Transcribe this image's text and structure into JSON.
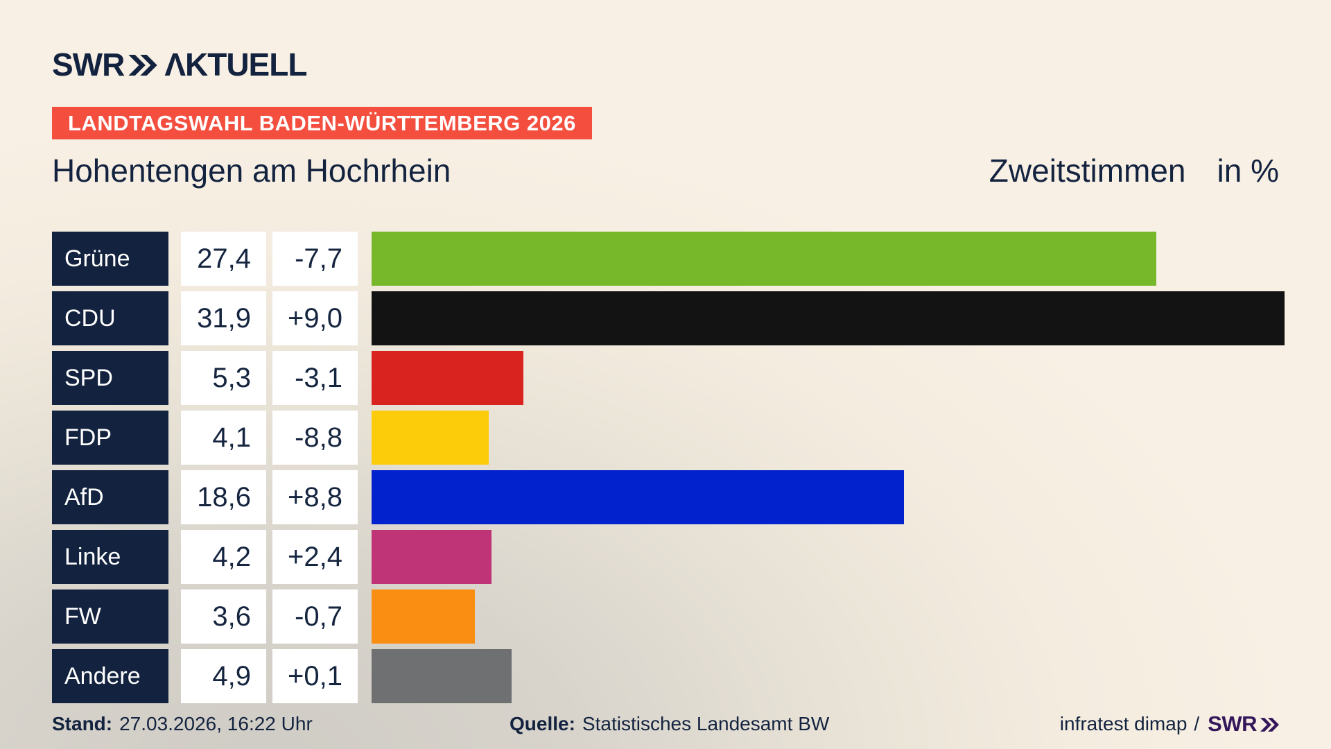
{
  "header": {
    "logo_swr": "SWR",
    "logo_aktuell": "ΛKTUELL",
    "banner": "LANDTAGSWAHL BADEN-WÜRTTEMBERG 2026"
  },
  "title": "Hohentengen am Hochrhein",
  "subtitle": {
    "main": "Zweitstimmen",
    "unit": "in %"
  },
  "chart_data": {
    "type": "bar",
    "orientation": "horizontal",
    "title": "Hohentengen am Hochrhein",
    "subtitle": "Zweitstimmen in %",
    "unit": "%",
    "xlim": [
      0,
      32
    ],
    "categories": [
      "Grüne",
      "CDU",
      "SPD",
      "FDP",
      "AfD",
      "Linke",
      "FW",
      "Andere"
    ],
    "values": [
      27.4,
      31.9,
      5.3,
      4.1,
      18.6,
      4.2,
      3.6,
      4.9
    ],
    "value_labels": [
      "27,4",
      "31,9",
      "5,3",
      "4,1",
      "18,6",
      "4,2",
      "3,6",
      "4,9"
    ],
    "changes": [
      "-7,7",
      "+9,0",
      "-3,1",
      "-8,8",
      "+8,8",
      "+2,4",
      "-0,7",
      "+0,1"
    ],
    "bar_colors": [
      "#76b82a",
      "#131313",
      "#d8231f",
      "#fccb0a",
      "#0222cd",
      "#bf3377",
      "#fa8e12",
      "#6e7071"
    ]
  },
  "footer": {
    "stand_label": "Stand:",
    "stand_value": "27.03.2026, 16:22 Uhr",
    "quelle_label": "Quelle:",
    "quelle_value": "Statistisches Landesamt BW",
    "credit": "infratest dimap",
    "credit_sep": "/",
    "credit_brand": "SWR"
  },
  "colors": {
    "background_cream": "#f8f0e4",
    "background_gray": "#cfccc5",
    "navy": "#13233f",
    "banner_red": "#f44e3e",
    "swr_purple": "#34175b",
    "cell_white": "#ffffff"
  }
}
